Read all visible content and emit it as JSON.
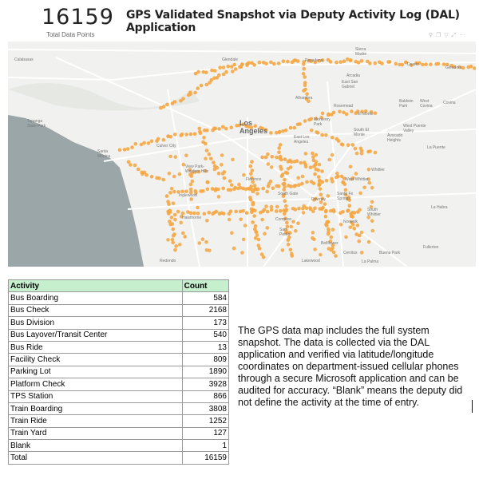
{
  "header": {
    "total_count": "16159",
    "total_label": "Total Data Points",
    "title": "GPS Validated Snapshot via Deputy Activity Log (DAL) Application"
  },
  "toolbar": {
    "icons": [
      "pin-icon",
      "copy-icon",
      "filter-icon",
      "focus-icon",
      "more-icon"
    ]
  },
  "map": {
    "labels": {
      "calabasas": "Calabasas",
      "glendale": "Glendale",
      "sierra_madre": "Sierra\nMadre",
      "pasadena": "Pasadena",
      "duarte": "Duarte",
      "glendora": "Glendora",
      "arcadia": "Arcadia",
      "east_san_gabriel": "East San\nGabriel",
      "alhambra": "Alhambra",
      "rosemead": "Rosemead",
      "baldwin_park": "Baldwin\nPark",
      "west_covina": "West\nCovina",
      "covina": "Covina",
      "el_monte": "El Monte",
      "monterey_park": "Monterey\nPark",
      "los_angeles": "Los\nAngeles",
      "south_el_monte": "South El\nMonte",
      "west_puente": "West Puente\nValley",
      "avocado_heights": "Avocado\nHeights",
      "la_puente": "La Puente",
      "topanga": "Topanga\nState Park",
      "santa_monica": "Santa\nMonica",
      "culver_city": "Culver City",
      "east_la": "East Los\nAngeles",
      "view_park": "View Park-\nWindsor Hills",
      "whittier": "Whittier",
      "west_whittier": "West Whittier",
      "inglewood": "Inglewood",
      "hawthorne": "Hawthorne",
      "florence": "Florence",
      "south_gate": "South Gate",
      "downey": "Downey",
      "santa_fe_springs": "Santa Fe\nSprings",
      "south_whittier": "South\nWhittier",
      "la_habra": "La Habra",
      "norwalk": "Norwalk",
      "compton": "Compton",
      "bellflower": "Bellflower",
      "fullerton": "Fullerton",
      "san_pedro": "San\nPedro",
      "redondo": "Redondo",
      "cerritos": "Cerritos",
      "buena_park": "Buena Park",
      "lakewood": "Lakewood",
      "la_palma": "La Palma"
    }
  },
  "table": {
    "headers": {
      "activity": "Activity",
      "count": "Count"
    },
    "rows": [
      {
        "activity": "Bus Boarding",
        "count": "584"
      },
      {
        "activity": "Bus Check",
        "count": "2168"
      },
      {
        "activity": "Bus Division",
        "count": "173"
      },
      {
        "activity": "Bus Layover/Transit Center",
        "count": "540"
      },
      {
        "activity": "Bus Ride",
        "count": "13"
      },
      {
        "activity": "Facility Check",
        "count": "809"
      },
      {
        "activity": "Parking Lot",
        "count": "1890"
      },
      {
        "activity": "Platform Check",
        "count": "3928"
      },
      {
        "activity": "TPS Station",
        "count": "866"
      },
      {
        "activity": "Train Boarding",
        "count": "3808"
      },
      {
        "activity": "Train Ride",
        "count": "1252"
      },
      {
        "activity": "Train Yard",
        "count": "127"
      },
      {
        "activity": "Blank",
        "count": "1"
      },
      {
        "activity": "Total",
        "count": "16159"
      }
    ]
  },
  "description": "The GPS data map includes the full system snapshot. The data is collected via the DAL application and verified via latitude/longitude coordinates on department-issued cellular phones through a secure Microsoft application and can be audited for accuracy. “Blank” means the deputy did not define the activity at the time of entry.",
  "colors": {
    "dot": "#f5a641",
    "ocean": "#9ba6a8",
    "land": "#f1f1ef",
    "road": "#ffffff",
    "header_green": "#c6efce"
  }
}
